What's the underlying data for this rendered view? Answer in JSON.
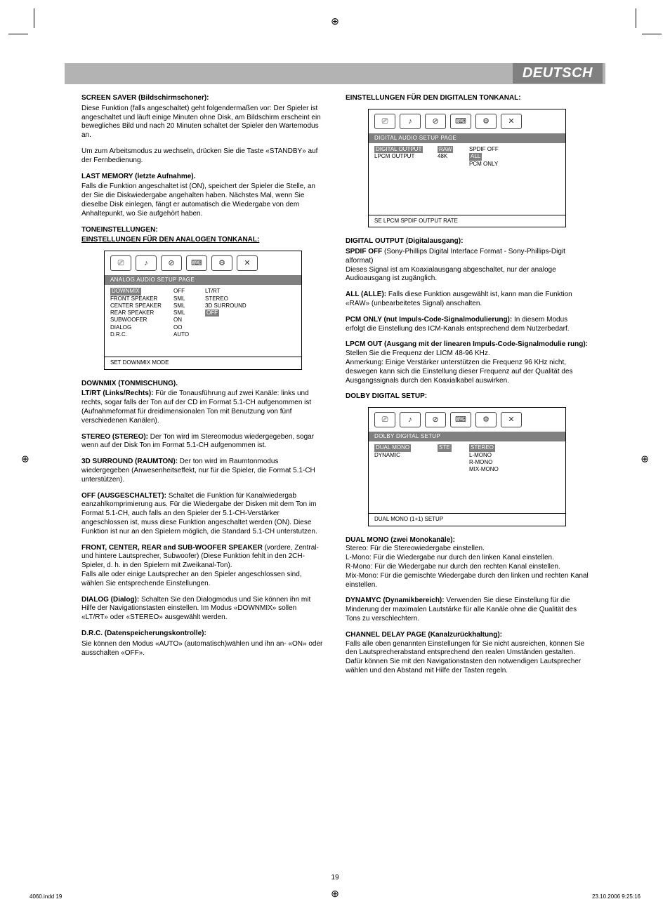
{
  "header": {
    "language_label": "DEUTSCH"
  },
  "left_column": {
    "screensaver": {
      "title": "SCREEN SAVER (Bildschirmschoner):",
      "body1": "Diese Funktion (falls angeschaltet) geht folgendermaßen vor: Der Spieler ist angeschaltet und läuft einige Minuten ohne Disk, am Bildschirm erscheint ein bewegliches Bild und nach 20 Minuten schaltet der Spieler den Wartemodus an.",
      "body2": "Um zum Arbeitsmodus zu wechseln, drücken Sie die Taste «STANDBY» auf der Fernbedienung."
    },
    "last_memory": {
      "title": "LAST MEMORY (letzte Aufnahme).",
      "body": "Falls die Funktion angeschaltet ist (ON), speichert der Spieler die Stelle, an der Sie die Diskwiedergabe angehalten haben. Nächstes Mal, wenn Sie dieselbe Disk einlegen, fängt er automatisch die Wiedergabe von dem Anhaltepunkt, wo Sie aufgehört haben."
    },
    "tone_title": "TONEINSTELLUNGEN:",
    "analog_title": "EINSTELLUNGEN FÜR DEN ANALOGEN TONKANAL:",
    "analog_box": {
      "bar": "ANALOG AUDIO SETUP PAGE",
      "rows": [
        {
          "c1": "DOWNMIX",
          "c1_hl": true,
          "c2": "OFF",
          "c3": "LT/RT"
        },
        {
          "c1": "FRONT SPEAKER",
          "c2": "SML",
          "c3": "STEREO"
        },
        {
          "c1": "CENTER SPEAKER",
          "c2": "SML",
          "c3": "3D SURROUND"
        },
        {
          "c1": "REAR SPEAKER",
          "c2": "SML",
          "c3": "OFF",
          "c3_hl": true
        },
        {
          "c1": "SUBWOOFER",
          "c2": "ON",
          "c3": ""
        },
        {
          "c1": "DIALOG",
          "c2": "OO",
          "c3": ""
        },
        {
          "c1": "D.R.C.",
          "c2": "AUTO",
          "c3": ""
        }
      ],
      "foot": "SET DOWNMIX MODE"
    },
    "downmix": {
      "title": "DOWNMIX (TONMISCHUNG).",
      "ltrt_label": "LT/RT (Links/Rechts):",
      "ltrt_body": " Für die Tonausführung auf zwei Kanäle: links und rechts, sogar falls der Ton auf der CD im Format  5.1-CH aufgenommen ist (Aufnahmeformat für dreidimensionalen Ton mit Benutzung von fünf verschiedenen Kanälen).",
      "stereo_label": "STEREO (STEREO):",
      "stereo_body": " Der Ton wird im Stereomodus wiedergegeben, sogar wenn auf der Disk Ton im Format 5.1-CH aufgenommen ist.",
      "surround_label": "3D SURROUND (RAUMTON):",
      "surround_body": " Der ton wird im Raumtonmodus wiedergegeben (Anwesenheitseffekt, nur für die Spieler, die Format 5.1-CH unterstützen).",
      "off_label": "OFF (AUSGESCHALTET):",
      "off_body": " Schaltet die Funktion für Kanalwiedergab eanzahlkomprimierung aus. Für die Wiedergabe der Disken mit dem Ton im Format 5.1-CH, auch falls an den Spieler der  5.1-CH-Verstärker angeschlossen ist, muss diese Funktion angeschaltet werden (ON). Diese Funktion ist nur an den Spielern möglich, die Standard  5.1-CH unterstutzen.",
      "speakers_label": "FRONT, CENTER, REAR and SUB-WOOFER SPEAKER",
      "speakers_body": " (vordere, Zentral- und hintere Lautsprecher, Subwoofer) (Diese Funktion fehlt in den  2CH-Spieler, d. h. in den Spielern mit Zweikanal-Ton).",
      "speakers_body2": "Falls alle oder einige Lautsprecher an den Spieler angeschlossen sind, wählen Sie entsprechende Einstellungen.",
      "dialog_label": "DIALOG (Dialog):",
      "dialog_body": " Schalten Sie den Dialogmodus und Sie können ihn mit Hilfe der Navigationstasten einstellen. Im Modus «DOWNMIX» sollen «LT/RT» oder «STEREO» ausgewählt werden.",
      "drc_label": "D.R.C. (Datenspeicherungskontrolle):",
      "drc_body": "Sie können den Modus «AUTO» (automatisch)wählen und ihn an-  «ON» oder ausschalten «OFF»."
    }
  },
  "right_column": {
    "digital_title": "EINSTELLUNGEN FÜR DEN DIGITALEN TONKANAL:",
    "digital_box": {
      "bar": "DIGITAL AUDIO SETUP PAGE",
      "rows": [
        {
          "c1": "DIGITAL OUTPUT",
          "c1_hl": true,
          "c2": "RAW",
          "c2_hl": true,
          "c3": "SPDIF OFF"
        },
        {
          "c1": "LPCM OUTPUT",
          "c2": "48K",
          "c3": "ALL",
          "c3_hl": true
        },
        {
          "c1": "",
          "c2": "",
          "c3": "PCM ONLY"
        }
      ],
      "foot": "SE LPCM SPDIF OUTPUT RATE"
    },
    "digital_out": {
      "title": "DIGITAL OUTPUT (Digitalausgang):",
      "spdif_label": "SPDIF OFF",
      "spdif_body": " (Sony-Phillips Digital Interface Format - Sony-Phillips-Digit alformat)",
      "spdif_body2": "Dieses Signal ist am Koaxialausgang abgeschaltet, nur der analoge Audioausgang ist zugänglich.",
      "all_label": "ALL (ALLE):",
      "all_body": " Falls diese Funktion ausgewählt ist, kann man die Funktion «RAW» (unbearbeitetes Signal) anschalten.",
      "pcm_label": "PCM ONLY (nut Impuls-Code-Signalmodulierung):",
      "pcm_body": " In diesem Modus erfolgt die Einstellung des ICM-Kanals entsprechend dem Nutzerbedarf.",
      "lpcm_label": "LPCM OUT (Ausgang mit der linearen Impuls-Code-Signalmodulie rung):",
      "lpcm_body": " Stellen Sie die Frequenz der LICM 48-96 KHz.",
      "lpcm_body2": "Anmerkung: Einige Verstärker unterstützen die Frequenz 96 KHz nicht, deswegen kann sich die Einstellung dieser Frequenz auf der Qualität des Ausgangssignals durch den Koaxialkabel auswirken."
    },
    "dolby_title": "DOLBY DIGITAL SETUP:",
    "dolby_box": {
      "bar": "DOLBY DIGITAL SETUP",
      "rows": [
        {
          "c1": "DUAL MONO",
          "c1_hl": true,
          "c2": "STE",
          "c2_hl": true,
          "c3": "STEREO",
          "c3_hl": true
        },
        {
          "c1": "DYNAMIC",
          "c2": "",
          "c3": "L-MONO"
        },
        {
          "c1": "",
          "c2": "",
          "c3": "R-MONO"
        },
        {
          "c1": "",
          "c2": "",
          "c3": "MIX-MONO"
        }
      ],
      "foot": "DUAL MONO (1+1) SETUP"
    },
    "dual_mono": {
      "title": "DUAL MONO (zwei Monokanäle):",
      "l1": "Stereo: Für die Stereowiedergabe einstellen.",
      "l2": "L-Mono:  Für die Wiedergabe nur durch den linken Kanal einstellen.",
      "l3": "R-Mono:  Für die Wiedergabe nur durch den rechten Kanal einstellen.",
      "l4": "Mix-Mono:  Für die gemischte Wiedergabe durch den linken und rechten Kanal einstellen."
    },
    "dynamic": {
      "label": "DYNAMYC (Dynamikbereich):",
      "body": "  Verwenden Sie diese Einstellung für die Minderung der maximalen Lautstärke für alle Kanäle ohne die Qualität des Tons zu verschlechtern."
    },
    "channel_delay": {
      "title": "CHANNEL DELAY PAGE (Kanalzurückhaltung):",
      "body": "Falls alle oben genannten Einstellungen für Sie nicht ausreichen, können Sie den Lautsprecherabstand entsprechend den realen Umständen gestalten. Dafür können Sie mit den Navigationstasten den notwendigen Lautsprecher wählen und den Abstand mit Hilfe der Tasten regeln."
    }
  },
  "footer": {
    "page_num": "19",
    "left": "4060.indd   19",
    "right": "23.10.2006   9:25:16"
  },
  "icons": [
    "⎚",
    "♪",
    "⊘",
    "⌨",
    "⚙",
    "✕"
  ]
}
